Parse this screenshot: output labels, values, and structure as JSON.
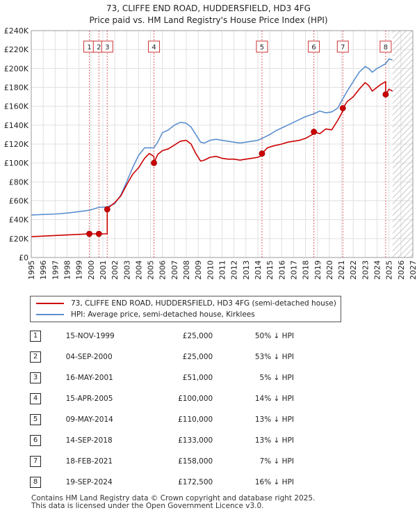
{
  "title_line1": "73, CLIFFE END ROAD, HUDDERSFIELD, HD3 4FG",
  "title_line2": "Price paid vs. HM Land Registry's House Price Index (HPI)",
  "legend": {
    "property_label": "73, CLIFFE END ROAD, HUDDERSFIELD, HD3 4FG (semi-detached house)",
    "hpi_label": "HPI: Average price, semi-detached house, Kirklees"
  },
  "colors": {
    "property_line": "#cc0000",
    "hpi_line": "#5b8fcf",
    "grid": "#e0e0e0",
    "marker_line": "#e06060",
    "future_hatch": "#c8c8c8"
  },
  "transactions": [
    {
      "num": "1",
      "date": "15-NOV-1999",
      "price": "£25,000",
      "hpi": "50% ↓ HPI"
    },
    {
      "num": "2",
      "date": "04-SEP-2000",
      "price": "£25,000",
      "hpi": "53% ↓ HPI"
    },
    {
      "num": "3",
      "date": "16-MAY-2001",
      "price": "£51,000",
      "hpi": "5% ↓ HPI"
    },
    {
      "num": "4",
      "date": "15-APR-2005",
      "price": "£100,000",
      "hpi": "14% ↓ HPI"
    },
    {
      "num": "5",
      "date": "09-MAY-2014",
      "price": "£110,000",
      "hpi": "13% ↓ HPI"
    },
    {
      "num": "6",
      "date": "14-SEP-2018",
      "price": "£133,000",
      "hpi": "13% ↓ HPI"
    },
    {
      "num": "7",
      "date": "18-FEB-2021",
      "price": "£158,000",
      "hpi": "7% ↓ HPI"
    },
    {
      "num": "8",
      "date": "19-SEP-2024",
      "price": "£172,500",
      "hpi": "16% ↓ HPI"
    }
  ],
  "footer_line1": "Contains HM Land Registry data © Crown copyright and database right 2025.",
  "footer_line2": "This data is licensed under the Open Government Licence v3.0.",
  "chart_data": {
    "type": "line",
    "title": "73, CLIFFE END ROAD, HUDDERSFIELD, HD3 4FG — Price paid vs. HM Land Registry's House Price Index (HPI)",
    "xlabel": "",
    "ylabel": "",
    "xlim": [
      1995,
      2027
    ],
    "ylim": [
      0,
      240000
    ],
    "x_ticks": [
      1995,
      1996,
      1997,
      1998,
      1999,
      2000,
      2001,
      2002,
      2003,
      2004,
      2005,
      2006,
      2007,
      2008,
      2009,
      2010,
      2011,
      2012,
      2013,
      2014,
      2015,
      2016,
      2017,
      2018,
      2019,
      2020,
      2021,
      2022,
      2023,
      2024,
      2025,
      2026,
      2027
    ],
    "y_ticks": [
      {
        "value": 0,
        "label": "£0"
      },
      {
        "value": 20000,
        "label": "£20K"
      },
      {
        "value": 40000,
        "label": "£40K"
      },
      {
        "value": 60000,
        "label": "£60K"
      },
      {
        "value": 80000,
        "label": "£80K"
      },
      {
        "value": 100000,
        "label": "£100K"
      },
      {
        "value": 120000,
        "label": "£120K"
      },
      {
        "value": 140000,
        "label": "£140K"
      },
      {
        "value": 160000,
        "label": "£160K"
      },
      {
        "value": 180000,
        "label": "£180K"
      },
      {
        "value": 200000,
        "label": "£200K"
      },
      {
        "value": 220000,
        "label": "£220K"
      },
      {
        "value": 240000,
        "label": "£240K"
      }
    ],
    "grid": true,
    "future_from": 2025.3,
    "series": [
      {
        "name": "73, CLIFFE END ROAD, HUDDERSFIELD, HD3 4FG (semi-detached house)",
        "x": [
          1995.0,
          1999.87,
          1999.87,
          2000.67,
          2000.67,
          2001.37,
          2001.37,
          2001.6,
          2002.0,
          2002.5,
          2003.0,
          2003.5,
          2004.0,
          2004.5,
          2004.9,
          2005.29,
          2005.29,
          2005.6,
          2006.0,
          2006.5,
          2007.0,
          2007.5,
          2008.0,
          2008.4,
          2008.8,
          2009.2,
          2009.5,
          2010.0,
          2010.5,
          2011.0,
          2011.5,
          2012.0,
          2012.5,
          2013.0,
          2013.5,
          2014.0,
          2014.35,
          2014.35,
          2014.8,
          2015.3,
          2016.0,
          2016.5,
          2017.0,
          2017.5,
          2018.0,
          2018.7,
          2018.7,
          2019.2,
          2019.7,
          2020.2,
          2020.7,
          2021.13,
          2021.13,
          2021.5,
          2022.0,
          2022.5,
          2023.0,
          2023.3,
          2023.6,
          2024.0,
          2024.3,
          2024.72,
          2024.72,
          2025.0,
          2025.3
        ],
        "y": [
          22000,
          25000,
          25000,
          25000,
          25000,
          25000,
          51000,
          54000,
          58000,
          65000,
          77000,
          88000,
          95000,
          105000,
          110000,
          107000,
          100000,
          109000,
          113000,
          115000,
          119000,
          123000,
          124000,
          120000,
          110000,
          102000,
          103000,
          106000,
          107000,
          105000,
          104000,
          104000,
          103000,
          104000,
          105000,
          106000,
          108000,
          110000,
          116000,
          118000,
          120000,
          122000,
          123000,
          124000,
          126000,
          131000,
          133000,
          131000,
          136000,
          135000,
          145000,
          155000,
          158000,
          165000,
          170000,
          178000,
          185000,
          182000,
          176000,
          180000,
          183000,
          186000,
          172500,
          178000,
          176000
        ]
      },
      {
        "name": "HPI: Average price, semi-detached house, Kirklees",
        "x": [
          1995.0,
          1996.0,
          1997.0,
          1998.0,
          1999.0,
          1999.87,
          2000.67,
          2001.37,
          2002.0,
          2002.5,
          2003.0,
          2003.5,
          2004.0,
          2004.5,
          2005.29,
          2005.6,
          2006.0,
          2006.5,
          2007.0,
          2007.5,
          2008.0,
          2008.4,
          2008.8,
          2009.2,
          2009.5,
          2010.0,
          2010.5,
          2011.0,
          2011.5,
          2012.0,
          2012.5,
          2013.0,
          2013.5,
          2014.0,
          2014.35,
          2015.0,
          2015.5,
          2016.0,
          2016.5,
          2017.0,
          2017.5,
          2018.0,
          2018.7,
          2019.2,
          2019.7,
          2020.2,
          2020.7,
          2021.13,
          2021.5,
          2022.0,
          2022.5,
          2023.0,
          2023.3,
          2023.6,
          2024.0,
          2024.3,
          2024.72,
          2025.0,
          2025.3
        ],
        "y": [
          45000,
          45500,
          46000,
          47000,
          48500,
          50000,
          53000,
          53500,
          57000,
          66000,
          80000,
          95000,
          108000,
          116000,
          116000,
          122000,
          132000,
          135000,
          140000,
          143000,
          142000,
          138000,
          130000,
          122000,
          121000,
          124000,
          125000,
          124000,
          123000,
          122000,
          121000,
          122000,
          123000,
          124000,
          126000,
          130000,
          134000,
          137000,
          140000,
          143000,
          146000,
          149000,
          152000,
          155000,
          153000,
          154000,
          158000,
          168000,
          176000,
          186000,
          196000,
          202000,
          200000,
          196000,
          200000,
          202000,
          205000,
          210000,
          209000
        ]
      }
    ],
    "sales": [
      {
        "num": "1",
        "x": 1999.87,
        "price": 25000
      },
      {
        "num": "2",
        "x": 2000.67,
        "price": 25000
      },
      {
        "num": "3",
        "x": 2001.37,
        "price": 51000
      },
      {
        "num": "4",
        "x": 2005.29,
        "price": 100000
      },
      {
        "num": "5",
        "x": 2014.35,
        "price": 110000
      },
      {
        "num": "6",
        "x": 2018.7,
        "price": 133000
      },
      {
        "num": "7",
        "x": 2021.13,
        "price": 158000
      },
      {
        "num": "8",
        "x": 2024.72,
        "price": 172500
      }
    ]
  }
}
